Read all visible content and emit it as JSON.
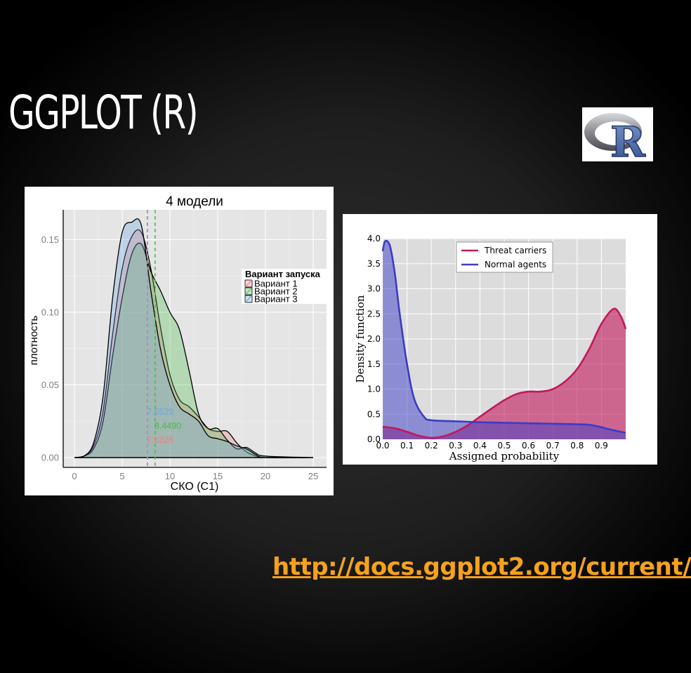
{
  "slide": {
    "title": "GGPLOT (R)",
    "link": "http://docs.ggplot2.org/current/",
    "logo_letter": "R"
  },
  "colors": {
    "background": "#1e1e1e",
    "link": "#f6a21c"
  },
  "chart_data": [
    {
      "type": "area",
      "title": "4 модели",
      "xlabel": "СКО (С1)",
      "ylabel": "плотность",
      "xlim": [
        0,
        25
      ],
      "ylim": [
        0,
        0.17
      ],
      "x_ticks": [
        0,
        5,
        10,
        15,
        20,
        25
      ],
      "y_ticks": [
        0.0,
        0.05,
        0.1,
        0.15
      ],
      "y_tick_labels": [
        "0.00",
        "0.05",
        "0.10",
        "0.15"
      ],
      "grid": true,
      "legend": {
        "title": "Вариант запуска",
        "position": "right"
      },
      "series": [
        {
          "name": "Вариант 1",
          "color": "#f08080",
          "mean": 7.6228,
          "mean_label": "7.6228",
          "points": [
            [
              0,
              0
            ],
            [
              1,
              0.001
            ],
            [
              2,
              0.008
            ],
            [
              3,
              0.032
            ],
            [
              4,
              0.085
            ],
            [
              5,
              0.13
            ],
            [
              6,
              0.152
            ],
            [
              7,
              0.155
            ],
            [
              8,
              0.13
            ],
            [
              9,
              0.09
            ],
            [
              10,
              0.057
            ],
            [
              11,
              0.04
            ],
            [
              12,
              0.035
            ],
            [
              13,
              0.028
            ],
            [
              14,
              0.02
            ],
            [
              15,
              0.018
            ],
            [
              16,
              0.018
            ],
            [
              17,
              0.01
            ],
            [
              18,
              0.004
            ],
            [
              19,
              0.001
            ],
            [
              20,
              0
            ],
            [
              25,
              0
            ]
          ]
        },
        {
          "name": "Вариант 2",
          "color": "#4dbb4d",
          "mean": 8.449,
          "mean_label": "8.4490",
          "points": [
            [
              0,
              0
            ],
            [
              1,
              0.001
            ],
            [
              2,
              0.006
            ],
            [
              3,
              0.025
            ],
            [
              4,
              0.07
            ],
            [
              5,
              0.11
            ],
            [
              6,
              0.14
            ],
            [
              7,
              0.147
            ],
            [
              8,
              0.128
            ],
            [
              9,
              0.115
            ],
            [
              10,
              0.1
            ],
            [
              11,
              0.088
            ],
            [
              12,
              0.06
            ],
            [
              13,
              0.03
            ],
            [
              14,
              0.02
            ],
            [
              15,
              0.02
            ],
            [
              16,
              0.012
            ],
            [
              17,
              0.006
            ],
            [
              18,
              0.007
            ],
            [
              19,
              0.003
            ],
            [
              20,
              0.001
            ],
            [
              25,
              0
            ]
          ]
        },
        {
          "name": "Вариант 3",
          "color": "#6fa4e0",
          "mean": 7.6529,
          "mean_label": "7.6529",
          "points": [
            [
              0,
              0
            ],
            [
              1,
              0.001
            ],
            [
              2,
              0.01
            ],
            [
              3,
              0.042
            ],
            [
              4,
              0.11
            ],
            [
              5,
              0.155
            ],
            [
              6,
              0.162
            ],
            [
              7,
              0.16
            ],
            [
              8,
              0.115
            ],
            [
              9,
              0.075
            ],
            [
              10,
              0.05
            ],
            [
              11,
              0.035
            ],
            [
              12,
              0.03
            ],
            [
              13,
              0.025
            ],
            [
              14,
              0.015
            ],
            [
              15,
              0.013
            ],
            [
              16,
              0.011
            ],
            [
              17,
              0.008
            ],
            [
              18,
              0.006
            ],
            [
              19,
              0.002
            ],
            [
              20,
              0
            ],
            [
              25,
              0
            ]
          ]
        }
      ]
    },
    {
      "type": "area",
      "title": "",
      "xlabel": "Assigned probability",
      "ylabel": "Density function",
      "xlim": [
        0,
        1
      ],
      "ylim": [
        0,
        4
      ],
      "x_ticks": [
        0,
        0.1,
        0.2,
        0.3,
        0.4,
        0.5,
        0.6,
        0.7,
        0.8,
        0.9
      ],
      "x_tick_labels": [
        "0.0",
        "0.1",
        "0.2",
        "0.3",
        "0.4",
        "0.5",
        "0.6",
        "0.7",
        "0.8",
        "0.9"
      ],
      "y_ticks": [
        0,
        0.5,
        1,
        1.5,
        2,
        2.5,
        3,
        3.5,
        4
      ],
      "y_tick_labels": [
        "0.0",
        "0.5",
        "1.0",
        "1.5",
        "2.0",
        "2.5",
        "3.0",
        "3.5",
        "4.0"
      ],
      "grid": true,
      "legend": {
        "position": "top-center"
      },
      "series": [
        {
          "name": "Threat carriers",
          "color": "#c2185b",
          "points": [
            [
              0,
              0.25
            ],
            [
              0.05,
              0.22
            ],
            [
              0.1,
              0.15
            ],
            [
              0.15,
              0.07
            ],
            [
              0.2,
              0.03
            ],
            [
              0.25,
              0.06
            ],
            [
              0.3,
              0.15
            ],
            [
              0.35,
              0.28
            ],
            [
              0.4,
              0.45
            ],
            [
              0.45,
              0.62
            ],
            [
              0.5,
              0.78
            ],
            [
              0.55,
              0.9
            ],
            [
              0.6,
              0.95
            ],
            [
              0.65,
              0.95
            ],
            [
              0.7,
              1.0
            ],
            [
              0.75,
              1.15
            ],
            [
              0.8,
              1.4
            ],
            [
              0.85,
              1.8
            ],
            [
              0.9,
              2.3
            ],
            [
              0.95,
              2.6
            ],
            [
              0.98,
              2.45
            ],
            [
              1.0,
              2.2
            ]
          ]
        },
        {
          "name": "Normal agents",
          "color": "#3b3bc8",
          "points": [
            [
              0,
              3.75
            ],
            [
              0.01,
              3.95
            ],
            [
              0.03,
              3.85
            ],
            [
              0.05,
              3.3
            ],
            [
              0.07,
              2.5
            ],
            [
              0.1,
              1.5
            ],
            [
              0.13,
              0.8
            ],
            [
              0.17,
              0.45
            ],
            [
              0.2,
              0.38
            ],
            [
              0.3,
              0.36
            ],
            [
              0.4,
              0.34
            ],
            [
              0.5,
              0.33
            ],
            [
              0.6,
              0.32
            ],
            [
              0.7,
              0.31
            ],
            [
              0.8,
              0.3
            ],
            [
              0.85,
              0.29
            ],
            [
              0.9,
              0.24
            ],
            [
              0.95,
              0.18
            ],
            [
              1.0,
              0.13
            ]
          ]
        }
      ]
    }
  ]
}
